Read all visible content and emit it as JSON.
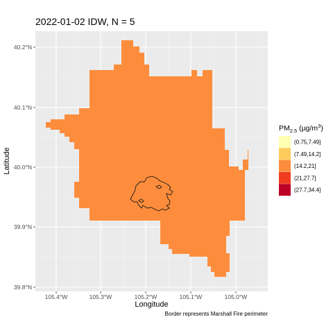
{
  "title": "2022-01-02 IDW, N =  5",
  "chart_data": {
    "type": "heatmap",
    "xlabel": "Longitude",
    "ylabel": "Latitude",
    "x_ticks": [
      "105.4°W",
      "105.3°W",
      "105.2°W",
      "105.1°W",
      "105.0°W"
    ],
    "y_ticks": [
      "39.8°N",
      "39.9°N",
      "40.0°N",
      "40.1°N",
      "40.2°N"
    ],
    "grid": true,
    "legend": {
      "title_main": "PM",
      "title_sub": "2.5",
      "title_unit": " (µg/m",
      "title_sup": "3",
      "title_close": ")",
      "position": "right",
      "entries": [
        {
          "label": "(0.75,7.49]",
          "color": "#FFFFB2"
        },
        {
          "label": "(7.49,14.2]",
          "color": "#FECC5C"
        },
        {
          "label": "(14.2,21]",
          "color": "#FD8D3C"
        },
        {
          "label": "(21,27.7]",
          "color": "#F03B20"
        },
        {
          "label": "(27.7,34.4]",
          "color": "#BD0026"
        }
      ]
    },
    "fill_color": "#FD8D3C",
    "fill_category": "(14.2,21]",
    "caption": "Border represents Marshall Fire perimeter"
  }
}
